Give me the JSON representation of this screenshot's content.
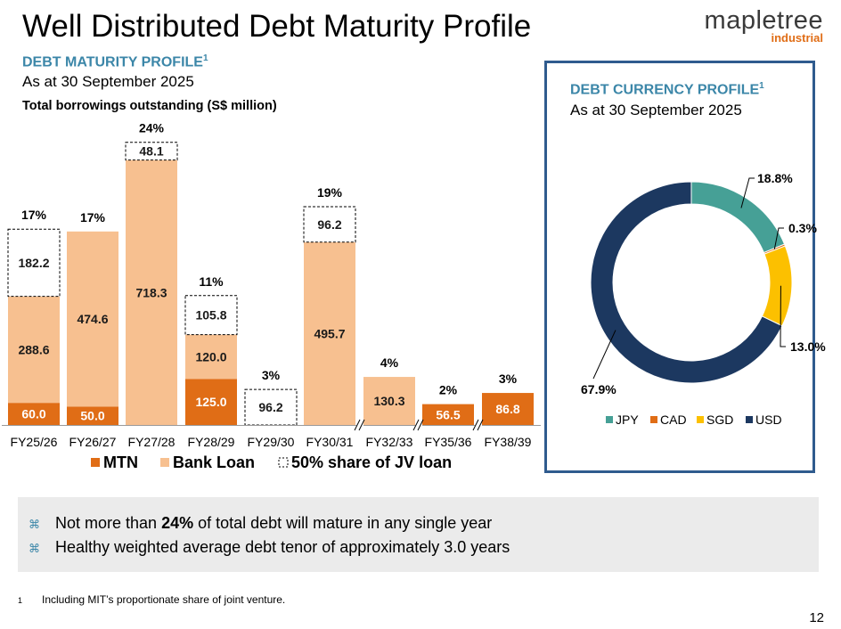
{
  "title": "Well Distributed Debt Maturity Profile",
  "logo": {
    "wordmark": "mapletree",
    "sub": "industrial"
  },
  "maturity": {
    "heading": "DEBT MATURITY PROFILE",
    "footnote_ref": "1",
    "as_at": "As at 30 September 2025",
    "chart_subtitle": "Total borrowings outstanding (S$ million)"
  },
  "currency": {
    "heading": "DEBT CURRENCY PROFILE",
    "footnote_ref": "1",
    "as_at": "As at 30 September 2025"
  },
  "chart_data": [
    {
      "type": "bar",
      "stacked": true,
      "title": "Total borrowings outstanding (S$ million)",
      "categories": [
        "FY25/26",
        "FY26/27",
        "FY27/28",
        "FY28/29",
        "FY29/30",
        "FY30/31",
        "FY32/33",
        "FY35/36",
        "FY38/39"
      ],
      "series": [
        {
          "name": "MTN",
          "color": "#e06d16",
          "values": [
            60.0,
            50.0,
            0,
            125.0,
            0,
            0,
            0,
            56.5,
            86.8
          ]
        },
        {
          "name": "Bank Loan",
          "color": "#f7c090",
          "values": [
            288.6,
            474.6,
            718.3,
            120.0,
            0,
            495.7,
            130.3,
            0,
            0
          ]
        },
        {
          "name": "50% share of JV loan",
          "color": "#ffffff",
          "values": [
            182.2,
            0,
            48.1,
            105.8,
            96.2,
            96.2,
            0,
            0,
            0
          ]
        }
      ],
      "value_labels": [
        [
          "60.0",
          "50.0",
          "",
          "125.0",
          "",
          "",
          "",
          "56.5",
          "86.8"
        ],
        [
          "288.6",
          "474.6",
          "718.3",
          "120.0",
          "",
          "495.7",
          "130.3",
          "",
          ""
        ],
        [
          "182.2",
          "",
          "48.1",
          "105.8",
          "96.2",
          "96.2",
          "",
          "",
          ""
        ]
      ],
      "share_labels": [
        "17%",
        "17%",
        "24%",
        "11%",
        "3%",
        "19%",
        "4%",
        "2%",
        "3%"
      ],
      "axis_breaks_before": [
        "FY32/33",
        "FY35/36",
        "FY38/39"
      ],
      "legend": [
        "MTN",
        "Bank Loan",
        "50% share of JV loan"
      ]
    },
    {
      "type": "pie",
      "donut": true,
      "labels": [
        "JPY",
        "CAD",
        "SGD",
        "USD"
      ],
      "values": [
        18.8,
        0.3,
        13.0,
        67.9
      ],
      "value_labels": [
        "18.8%",
        "0.3%",
        "13.0%",
        "67.9%"
      ],
      "colors": [
        "#46a096",
        "#e06d16",
        "#fcc000",
        "#1c3860"
      ],
      "legend": [
        "JPY",
        "CAD",
        "SGD",
        "USD"
      ]
    }
  ],
  "bullets": [
    {
      "pre": "Not more than ",
      "bold": "24%",
      "post": " of total debt will mature in any single year"
    },
    {
      "pre": "Healthy weighted average debt tenor of approximately 3.0 years",
      "bold": "",
      "post": ""
    }
  ],
  "bullet_marker": "⌘",
  "footnote": {
    "num": "1",
    "text": "Including MIT’s proportionate share of joint venture."
  },
  "page_number": "12"
}
